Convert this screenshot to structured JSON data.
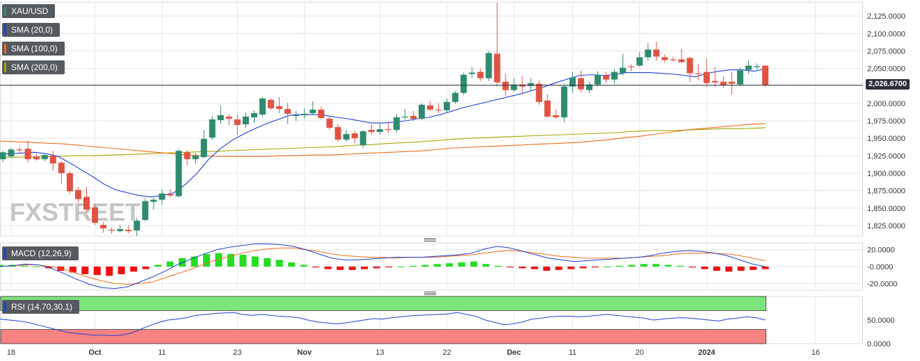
{
  "chart_data": [
    {
      "type": "candlestick",
      "panel": "price",
      "symbol": "XAU/USD",
      "indicators": [
        "SMA (20,0)",
        "SMA (100,0)",
        "SMA (200,0)"
      ],
      "last_price": "2,026.6700",
      "y_range": [
        1810,
        2145
      ],
      "y_ticks": [
        "2,125.0000",
        "2,100.0000",
        "2,075.0000",
        "2,050.0000",
        "2,025.0000",
        "2,000.0000",
        "1,975.0000",
        "1,950.0000",
        "1,925.0000",
        "1,900.0000",
        "1,875.0000",
        "1,850.0000",
        "1,825.0000"
      ],
      "y_tick_values": [
        2125,
        2100,
        2075,
        2050,
        2025,
        2000,
        1975,
        1950,
        1925,
        1900,
        1875,
        1850,
        1825
      ],
      "x_labels": [
        "18",
        "Oct",
        "11",
        "23",
        "Nov",
        "13",
        "22",
        "Dec",
        "11",
        "20",
        "2024",
        "16"
      ],
      "x_label_bar_index": [
        1,
        11,
        19,
        28,
        36,
        45,
        53,
        61,
        68,
        76,
        84,
        97
      ],
      "candles": [
        {
          "o": 1920,
          "h": 1932,
          "l": 1916,
          "c": 1930
        },
        {
          "o": 1924,
          "h": 1936,
          "l": 1922,
          "c": 1934
        },
        {
          "o": 1934,
          "h": 1938,
          "l": 1928,
          "c": 1933
        },
        {
          "o": 1935,
          "h": 1947,
          "l": 1915,
          "c": 1920
        },
        {
          "o": 1924,
          "h": 1928,
          "l": 1918,
          "c": 1920
        },
        {
          "o": 1920,
          "h": 1927,
          "l": 1917,
          "c": 1926
        },
        {
          "o": 1925,
          "h": 1932,
          "l": 1903,
          "c": 1914
        },
        {
          "o": 1915,
          "h": 1917,
          "l": 1885,
          "c": 1900
        },
        {
          "o": 1900,
          "h": 1903,
          "l": 1870,
          "c": 1874
        },
        {
          "o": 1876,
          "h": 1880,
          "l": 1858,
          "c": 1863
        },
        {
          "o": 1866,
          "h": 1880,
          "l": 1845,
          "c": 1848
        },
        {
          "o": 1851,
          "h": 1855,
          "l": 1826,
          "c": 1829
        },
        {
          "o": 1826,
          "h": 1830,
          "l": 1815,
          "c": 1821
        },
        {
          "o": 1819,
          "h": 1823,
          "l": 1813,
          "c": 1818
        },
        {
          "o": 1817,
          "h": 1826,
          "l": 1815,
          "c": 1820
        },
        {
          "o": 1819,
          "h": 1825,
          "l": 1814,
          "c": 1817
        },
        {
          "o": 1818,
          "h": 1836,
          "l": 1810,
          "c": 1832
        },
        {
          "o": 1833,
          "h": 1864,
          "l": 1831,
          "c": 1860
        },
        {
          "o": 1859,
          "h": 1865,
          "l": 1848,
          "c": 1862
        },
        {
          "o": 1862,
          "h": 1876,
          "l": 1855,
          "c": 1871
        },
        {
          "o": 1870,
          "h": 1877,
          "l": 1866,
          "c": 1868
        },
        {
          "o": 1867,
          "h": 1935,
          "l": 1865,
          "c": 1932
        },
        {
          "o": 1930,
          "h": 1933,
          "l": 1911,
          "c": 1920
        },
        {
          "o": 1920,
          "h": 1929,
          "l": 1913,
          "c": 1925
        },
        {
          "o": 1923,
          "h": 1962,
          "l": 1922,
          "c": 1949
        },
        {
          "o": 1951,
          "h": 1982,
          "l": 1948,
          "c": 1977
        },
        {
          "o": 1976,
          "h": 1997,
          "l": 1971,
          "c": 1983
        },
        {
          "o": 1981,
          "h": 1985,
          "l": 1969,
          "c": 1978
        },
        {
          "o": 1977,
          "h": 1984,
          "l": 1954,
          "c": 1969
        },
        {
          "o": 1970,
          "h": 1987,
          "l": 1965,
          "c": 1981
        },
        {
          "o": 1980,
          "h": 1990,
          "l": 1972,
          "c": 1986
        },
        {
          "o": 1984,
          "h": 2009,
          "l": 1980,
          "c": 2007
        },
        {
          "o": 2005,
          "h": 2007,
          "l": 1991,
          "c": 1993
        },
        {
          "o": 1996,
          "h": 2009,
          "l": 1986,
          "c": 1992
        },
        {
          "o": 1992,
          "h": 2001,
          "l": 1970,
          "c": 1985
        },
        {
          "o": 1983,
          "h": 1989,
          "l": 1975,
          "c": 1983
        },
        {
          "o": 1983,
          "h": 1993,
          "l": 1978,
          "c": 1985
        },
        {
          "o": 1986,
          "h": 2003,
          "l": 1983,
          "c": 1991
        },
        {
          "o": 1991,
          "h": 1995,
          "l": 1977,
          "c": 1979
        },
        {
          "o": 1978,
          "h": 1981,
          "l": 1962,
          "c": 1965
        },
        {
          "o": 1966,
          "h": 1970,
          "l": 1945,
          "c": 1948
        },
        {
          "o": 1948,
          "h": 1962,
          "l": 1945,
          "c": 1956
        },
        {
          "o": 1957,
          "h": 1961,
          "l": 1943,
          "c": 1950
        },
        {
          "o": 1940,
          "h": 1962,
          "l": 1936,
          "c": 1960
        },
        {
          "o": 1962,
          "h": 1970,
          "l": 1955,
          "c": 1959
        },
        {
          "o": 1959,
          "h": 1971,
          "l": 1955,
          "c": 1963
        },
        {
          "o": 1963,
          "h": 1972,
          "l": 1957,
          "c": 1962
        },
        {
          "o": 1962,
          "h": 1985,
          "l": 1958,
          "c": 1980
        },
        {
          "o": 1980,
          "h": 1992,
          "l": 1977,
          "c": 1981
        },
        {
          "o": 1982,
          "h": 1989,
          "l": 1975,
          "c": 1978
        },
        {
          "o": 1978,
          "h": 2000,
          "l": 1976,
          "c": 1998
        },
        {
          "o": 1997,
          "h": 2003,
          "l": 1989,
          "c": 1991
        },
        {
          "o": 1991,
          "h": 2000,
          "l": 1986,
          "c": 1990
        },
        {
          "o": 1990,
          "h": 2007,
          "l": 1986,
          "c": 2002
        },
        {
          "o": 2002,
          "h": 2018,
          "l": 1999,
          "c": 2015
        },
        {
          "o": 2015,
          "h": 2044,
          "l": 2012,
          "c": 2041
        },
        {
          "o": 2042,
          "h": 2052,
          "l": 2036,
          "c": 2044
        },
        {
          "o": 2045,
          "h": 2050,
          "l": 2032,
          "c": 2036
        },
        {
          "o": 2036,
          "h": 2075,
          "l": 2032,
          "c": 2072
        },
        {
          "o": 2071,
          "h": 2144,
          "l": 2024,
          "c": 2030
        },
        {
          "o": 2031,
          "h": 2043,
          "l": 2011,
          "c": 2019
        },
        {
          "o": 2019,
          "h": 2036,
          "l": 2016,
          "c": 2027
        },
        {
          "o": 2027,
          "h": 2039,
          "l": 2015,
          "c": 2024
        },
        {
          "o": 2025,
          "h": 2036,
          "l": 2018,
          "c": 2029
        },
        {
          "o": 2028,
          "h": 2033,
          "l": 1998,
          "c": 2002
        },
        {
          "o": 2004,
          "h": 2013,
          "l": 1979,
          "c": 1981
        },
        {
          "o": 1983,
          "h": 1992,
          "l": 1978,
          "c": 1980
        },
        {
          "o": 1980,
          "h": 2027,
          "l": 1973,
          "c": 2024
        },
        {
          "o": 2024,
          "h": 2045,
          "l": 2015,
          "c": 2037
        },
        {
          "o": 2036,
          "h": 2047,
          "l": 2016,
          "c": 2020
        },
        {
          "o": 2019,
          "h": 2031,
          "l": 2015,
          "c": 2027
        },
        {
          "o": 2027,
          "h": 2046,
          "l": 2024,
          "c": 2041
        },
        {
          "o": 2040,
          "h": 2045,
          "l": 2029,
          "c": 2034
        },
        {
          "o": 2034,
          "h": 2049,
          "l": 2028,
          "c": 2045
        },
        {
          "o": 2043,
          "h": 2071,
          "l": 2040,
          "c": 2051
        },
        {
          "o": 2053,
          "h": 2056,
          "l": 2046,
          "c": 2052
        },
        {
          "o": 2054,
          "h": 2074,
          "l": 2052,
          "c": 2066
        },
        {
          "o": 2066,
          "h": 2086,
          "l": 2061,
          "c": 2077
        },
        {
          "o": 2077,
          "h": 2088,
          "l": 2061,
          "c": 2067
        },
        {
          "o": 2066,
          "h": 2070,
          "l": 2058,
          "c": 2062
        },
        {
          "o": 2063,
          "h": 2067,
          "l": 2060,
          "c": 2062
        },
        {
          "o": 2063,
          "h": 2078,
          "l": 2058,
          "c": 2059
        },
        {
          "o": 2065,
          "h": 2066,
          "l": 2030,
          "c": 2043
        },
        {
          "o": 2043,
          "h": 2056,
          "l": 2033,
          "c": 2042
        },
        {
          "o": 2045,
          "h": 2064,
          "l": 2024,
          "c": 2029
        },
        {
          "o": 2032,
          "h": 2052,
          "l": 2024,
          "c": 2030
        },
        {
          "o": 2031,
          "h": 2039,
          "l": 2022,
          "c": 2026
        },
        {
          "o": 2031,
          "h": 2045,
          "l": 2013,
          "c": 2028
        },
        {
          "o": 2027,
          "h": 2051,
          "l": 2025,
          "c": 2047
        },
        {
          "o": 2048,
          "h": 2062,
          "l": 2042,
          "c": 2054
        },
        {
          "o": 2052,
          "h": 2057,
          "l": 2049,
          "c": 2053
        },
        {
          "o": 2054,
          "h": 2055,
          "l": 2024,
          "c": 2026
        }
      ],
      "sma20": [
        1927,
        1928,
        1929,
        1930,
        1928,
        1924,
        1915,
        1905,
        1895,
        1884,
        1876,
        1872,
        1868,
        1866,
        1868,
        1872,
        1884,
        1900,
        1920,
        1935,
        1947,
        1956,
        1964,
        1971,
        1977,
        1983,
        1984,
        1984,
        1983,
        1980,
        1978,
        1975,
        1972,
        1972,
        1973,
        1975,
        1978,
        1980,
        1984,
        1989,
        1994,
        1998,
        2002,
        2006,
        2010,
        2014,
        2019,
        2024,
        2030,
        2035,
        2040,
        2041,
        2040,
        2041,
        2044,
        2044,
        2044,
        2043,
        2042,
        2040,
        2038,
        2043,
        2046,
        2048,
        2048,
        2046,
        2049
      ],
      "sma100": [
        1946,
        1945,
        1944,
        1943,
        1942,
        1940,
        1938,
        1936,
        1934,
        1932,
        1930,
        1928,
        1926,
        1925,
        1924,
        1924,
        1924,
        1924,
        1925,
        1925,
        1926,
        1926,
        1927,
        1928,
        1929,
        1930,
        1931,
        1932,
        1934,
        1936,
        1937,
        1938,
        1939,
        1940,
        1941,
        1942,
        1943,
        1944,
        1946,
        1948,
        1951,
        1953,
        1956,
        1959,
        1962,
        1964,
        1966,
        1968,
        1970,
        1971
      ],
      "sma200": [
        1922,
        1923,
        1923,
        1924,
        1925,
        1925,
        1926,
        1927,
        1928,
        1929,
        1930,
        1931,
        1932,
        1933,
        1934,
        1935,
        1936,
        1937,
        1938,
        1940,
        1941,
        1943,
        1944,
        1946,
        1948,
        1950,
        1951,
        1952,
        1953,
        1954,
        1955,
        1956,
        1957,
        1958,
        1960,
        1961,
        1961,
        1962,
        1963,
        1964,
        1964,
        1965
      ]
    },
    {
      "type": "macd",
      "panel": "macd",
      "label": "MACD (12,26,9)",
      "y_range": [
        -28,
        28
      ],
      "y_ticks": [
        "20.0000",
        "-0.0000",
        "-20.0000"
      ],
      "y_tick_values": [
        20,
        0,
        -20
      ],
      "macd_line": [
        0,
        1,
        3,
        2,
        -2,
        -8,
        -15,
        -21,
        -25,
        -26,
        -24,
        -18,
        -12,
        -5,
        3,
        9,
        15,
        20,
        23,
        25,
        27,
        27,
        26,
        24,
        20,
        15,
        10,
        8,
        8,
        9,
        10,
        11,
        11,
        11,
        12,
        13,
        14,
        16,
        21,
        24,
        22,
        18,
        14,
        10,
        8,
        6,
        7,
        8,
        9,
        10,
        11,
        13,
        16,
        18,
        19,
        18,
        16,
        13,
        8,
        3,
        0
      ],
      "signal_line": [
        0,
        1,
        2,
        2,
        0,
        -3,
        -8,
        -13,
        -17,
        -20,
        -21,
        -20,
        -18,
        -13,
        -8,
        -3,
        3,
        8,
        12,
        16,
        19,
        21,
        22,
        22,
        20,
        18,
        15,
        13,
        12,
        11,
        11,
        10,
        11,
        11,
        11,
        12,
        13,
        14,
        16,
        18,
        19,
        18,
        16,
        14,
        12,
        11,
        10,
        10,
        10,
        10,
        11,
        12,
        13,
        15,
        16,
        16,
        16,
        15,
        13,
        10,
        7
      ],
      "histogram": [
        2,
        2,
        1,
        0,
        -2,
        -5,
        -7,
        -9,
        -10,
        -11,
        -9,
        -6,
        -3,
        2,
        6,
        10,
        12,
        15,
        16,
        15,
        14,
        12,
        10,
        8,
        5,
        2,
        -1,
        -3,
        -4,
        -4,
        -3,
        -2,
        -1,
        0,
        1,
        2,
        3,
        4,
        5,
        6,
        3,
        1,
        -1,
        -2,
        -3,
        -5,
        -4,
        -3,
        -2,
        -1,
        0,
        1,
        2,
        3,
        3,
        2,
        1,
        -1,
        -3,
        -5,
        -6,
        -5,
        -4,
        -3
      ],
      "histogram_colors": [
        "#22dd22",
        "#ee1111"
      ]
    },
    {
      "type": "rsi",
      "panel": "rsi",
      "label": "RSI (14,70,30,1)",
      "y_range": [
        0,
        100
      ],
      "y_ticks": [
        "50.0000",
        "0.0000"
      ],
      "y_tick_values": [
        50,
        0
      ],
      "overbought": 70,
      "oversold": 30,
      "rsi_line": [
        52,
        50,
        48,
        45,
        40,
        35,
        30,
        25,
        22,
        20,
        18,
        18,
        17,
        18,
        22,
        30,
        38,
        45,
        50,
        52,
        55,
        60,
        62,
        64,
        65,
        66,
        62,
        60,
        62,
        60,
        58,
        57,
        55,
        50,
        46,
        44,
        42,
        44,
        47,
        50,
        53,
        52,
        55,
        57,
        59,
        60,
        61,
        62,
        63,
        66,
        62,
        58,
        50,
        45,
        40,
        42,
        46,
        52,
        54,
        57,
        58,
        58,
        57,
        58,
        60,
        62,
        60,
        58,
        56,
        54,
        50,
        52,
        54,
        55,
        54,
        52,
        50,
        48,
        52,
        54,
        57,
        55,
        50
      ]
    },
    {
      "legend": [
        "XAU/USD",
        "SMA (20,0)",
        "SMA (100,0)",
        "SMA (200,0)"
      ],
      "legend_colors": [
        "#2e8b6f",
        "#1a3fd6",
        "#ef6c1a",
        "#a8a800"
      ],
      "watermark": "FXSTREET",
      "colors": {
        "up": "#2e8b6f",
        "down": "#e05343",
        "sma20": "#1a3fd6",
        "sma100": "#ef6c1a",
        "sma200": "#a8a800",
        "macd": "#1a3fd6",
        "signal": "#ef6c1a",
        "rsi": "#1a3fd6",
        "overbought_fill": "#7be57b",
        "oversold_fill": "#f78383",
        "grid": "#e6e6e6",
        "axis_text": "#333333"
      }
    }
  ]
}
